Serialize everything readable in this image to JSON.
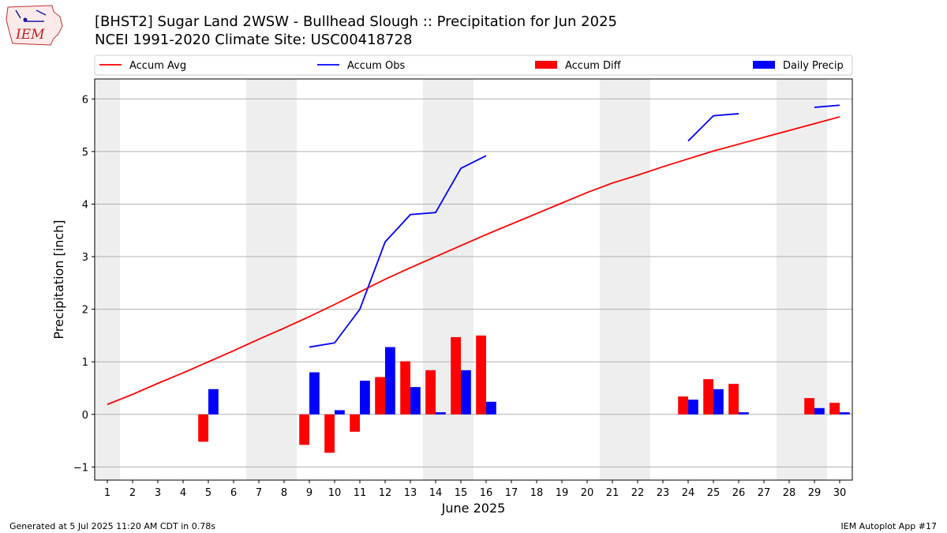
{
  "header": {
    "title_line1": "[BHST2] Sugar Land 2WSW - Bullhead Slough :: Precipitation for Jun 2025",
    "title_line2": "NCEI 1991-2020 Climate Site: USC00418728",
    "logo_text": "IEM"
  },
  "footer": {
    "generated": "Generated at 5 Jul 2025 11:20 AM CDT in 0.78s",
    "app": "IEM Autoplot App #17"
  },
  "chart_data": {
    "type": "bar",
    "xlabel": "June 2025",
    "ylabel": "Precipitation [inch]",
    "xlim": [
      0.5,
      30.5
    ],
    "ylim": [
      -1.25,
      6.38
    ],
    "x_ticks": [
      1,
      2,
      3,
      4,
      5,
      6,
      7,
      8,
      9,
      10,
      11,
      12,
      13,
      14,
      15,
      16,
      17,
      18,
      19,
      20,
      21,
      22,
      23,
      24,
      25,
      26,
      27,
      28,
      29,
      30
    ],
    "y_ticks": [
      -1,
      0,
      1,
      2,
      3,
      4,
      5,
      6
    ],
    "grid": "horizontal",
    "weekend_shading": [
      [
        0.5,
        1.5
      ],
      [
        6.5,
        8.5
      ],
      [
        13.5,
        15.5
      ],
      [
        20.5,
        22.5
      ],
      [
        27.5,
        29.5
      ]
    ],
    "legend_placement": "top, above plot",
    "series": [
      {
        "name": "Accum Avg",
        "kind": "line",
        "color": "#ff0000",
        "x": [
          1,
          2,
          3,
          4,
          5,
          6,
          7,
          8,
          9,
          10,
          11,
          12,
          13,
          14,
          15,
          16,
          17,
          18,
          19,
          20,
          21,
          22,
          23,
          24,
          25,
          26,
          27,
          28,
          29,
          30
        ],
        "values": [
          0.19,
          0.38,
          0.59,
          0.79,
          1.0,
          1.21,
          1.43,
          1.64,
          1.86,
          2.09,
          2.33,
          2.57,
          2.79,
          3.0,
          3.21,
          3.42,
          3.62,
          3.82,
          4.02,
          4.22,
          4.4,
          4.55,
          4.71,
          4.86,
          5.01,
          5.14,
          5.27,
          5.4,
          5.53,
          5.66
        ]
      },
      {
        "name": "Accum Obs",
        "kind": "line",
        "color": "#0000ff",
        "segments": [
          {
            "x": [
              9,
              10,
              11,
              12,
              13,
              14,
              15,
              16
            ],
            "values": [
              1.28,
              1.36,
              2.0,
              3.28,
              3.8,
              3.84,
              4.68,
              4.92
            ]
          },
          {
            "x": [
              24,
              25,
              26
            ],
            "values": [
              5.2,
              5.68,
              5.72
            ]
          },
          {
            "x": [
              29,
              30
            ],
            "values": [
              5.84,
              5.88
            ]
          }
        ]
      },
      {
        "name": "Accum Diff",
        "kind": "bar",
        "color": "#ff0000",
        "offset": -0.2,
        "x": [
          5,
          9,
          10,
          11,
          12,
          13,
          14,
          15,
          16,
          24,
          25,
          26,
          29,
          30
        ],
        "values": [
          -0.52,
          -0.58,
          -0.73,
          -0.33,
          0.71,
          1.01,
          0.84,
          1.47,
          1.5,
          0.34,
          0.67,
          0.58,
          0.31,
          0.22
        ]
      },
      {
        "name": "Daily Precip",
        "kind": "bar",
        "color": "#0000ff",
        "offset": 0.2,
        "x": [
          5,
          9,
          10,
          11,
          12,
          13,
          14,
          15,
          16,
          24,
          25,
          26,
          29,
          30
        ],
        "values": [
          0.48,
          0.8,
          0.08,
          0.64,
          1.28,
          0.52,
          0.04,
          0.84,
          0.24,
          0.28,
          0.48,
          0.04,
          0.12,
          0.04
        ]
      }
    ]
  }
}
